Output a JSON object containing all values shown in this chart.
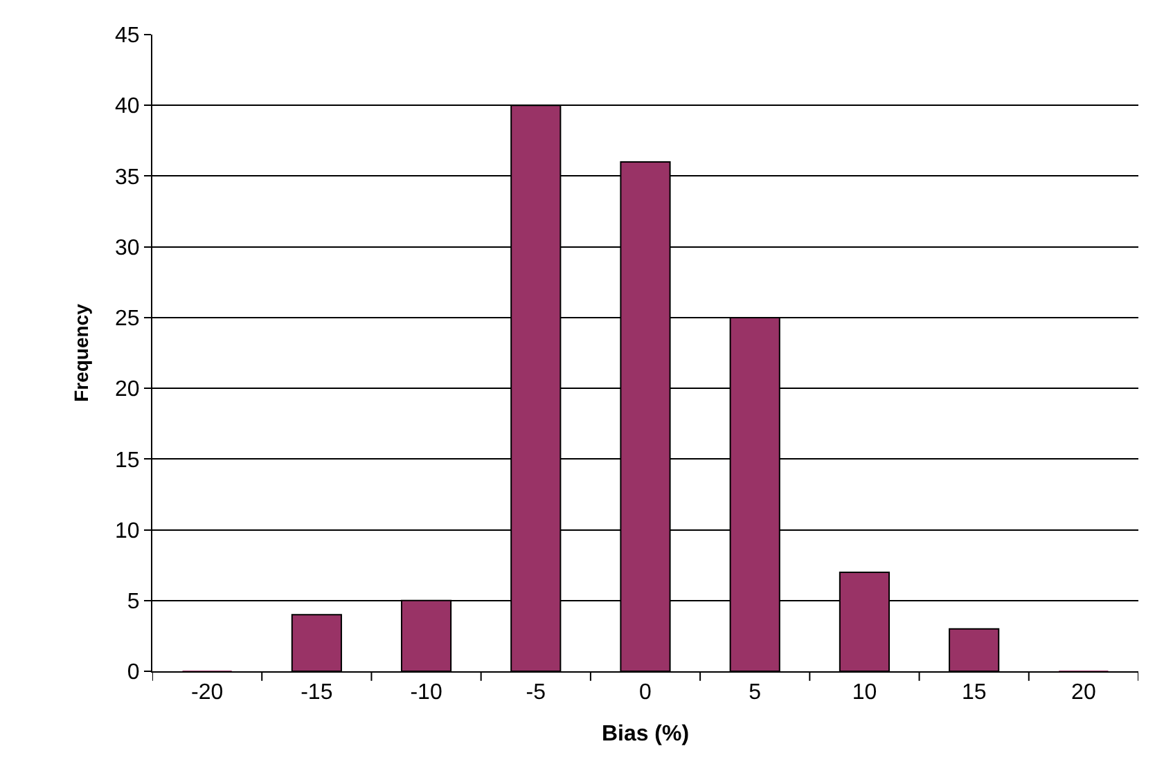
{
  "chart_data": {
    "type": "bar",
    "xlabel": "Bias (%)",
    "ylabel": "Frequency",
    "categories": [
      "-20",
      "-15",
      "-10",
      "-5",
      "0",
      "5",
      "10",
      "15",
      "20"
    ],
    "values": [
      0,
      4,
      5,
      40,
      36,
      25,
      7,
      3,
      0
    ],
    "color": "#993366",
    "ylim": [
      0,
      45
    ],
    "yticks": [
      0,
      5,
      10,
      15,
      20,
      25,
      30,
      35,
      40,
      45
    ],
    "grid": "y"
  }
}
